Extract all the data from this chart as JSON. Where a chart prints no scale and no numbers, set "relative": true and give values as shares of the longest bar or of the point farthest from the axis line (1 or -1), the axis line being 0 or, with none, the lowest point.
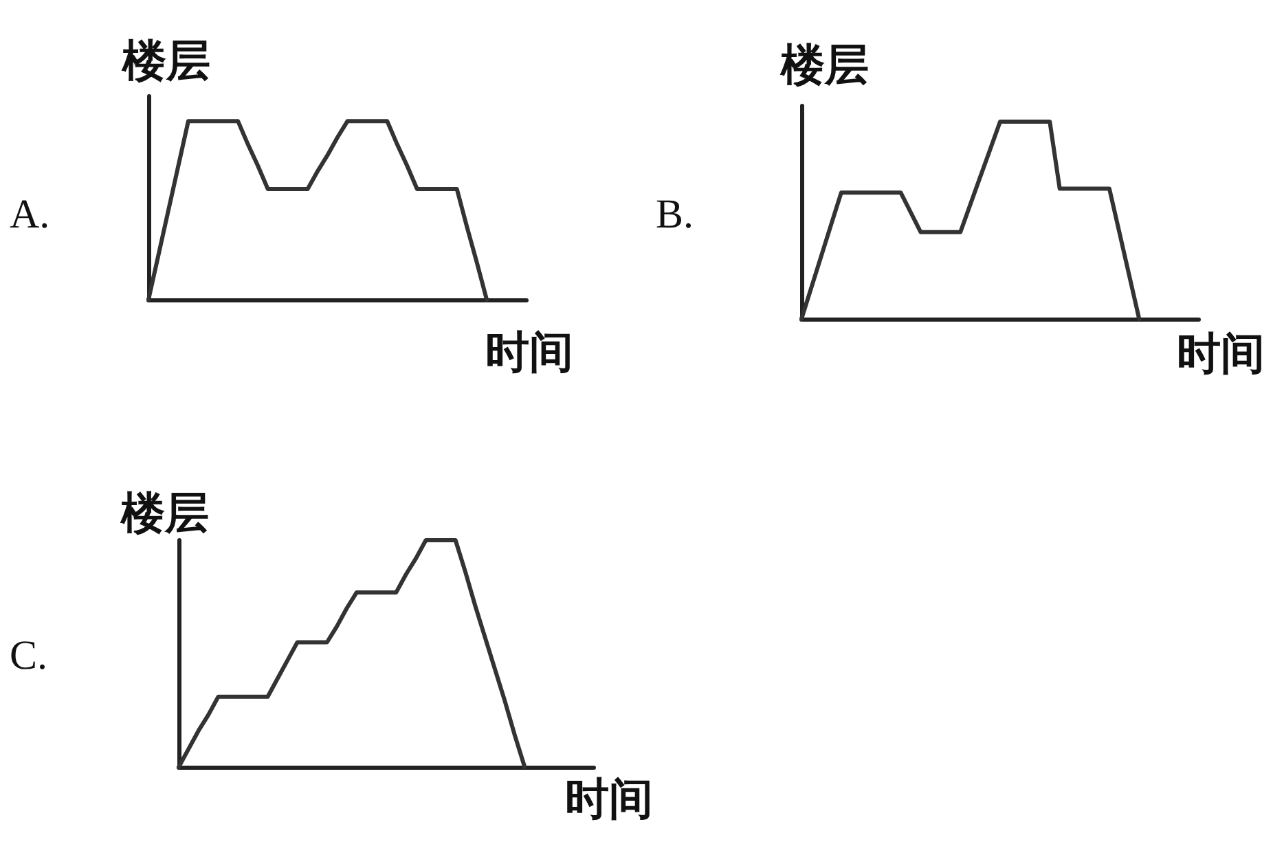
{
  "chart_data": [
    {
      "type": "line",
      "title": "A.",
      "xlabel": "时间",
      "ylabel": "楼层",
      "relative": true,
      "color": "#333333",
      "categories": [
        null,
        null,
        null,
        null,
        null,
        null,
        null,
        null,
        null,
        null,
        null,
        null,
        null,
        null,
        null,
        null,
        null,
        null,
        null,
        null,
        null,
        null,
        null,
        null,
        null,
        null,
        null,
        null,
        null,
        null,
        null,
        null,
        null,
        null,
        null,
        null,
        null,
        null,
        null
      ],
      "values": [
        0,
        0.25,
        0.5,
        0.75,
        1,
        1,
        1,
        1,
        1,
        1,
        0.87,
        0.75,
        0.62,
        0.62,
        0.62,
        0.62,
        0.62,
        0.72,
        0.81,
        0.91,
        1,
        1,
        1,
        1,
        1,
        0.87,
        0.75,
        0.62,
        0.62,
        0.62,
        0.62,
        0.62,
        0.41,
        0.21,
        0,
        null,
        null,
        null,
        null
      ]
    },
    {
      "type": "line",
      "title": "B.",
      "xlabel": "时间",
      "ylabel": "楼层",
      "relative": true,
      "color": "#333333",
      "categories": [
        null,
        null,
        null,
        null,
        null,
        null,
        null,
        null,
        null,
        null,
        null,
        null,
        null,
        null,
        null,
        null,
        null,
        null,
        null,
        null,
        null,
        null,
        null,
        null,
        null,
        null,
        null,
        null,
        null,
        null,
        null,
        null,
        null,
        null,
        null,
        null,
        null,
        null,
        null,
        null,
        null
      ],
      "values": [
        0,
        0.16,
        0.32,
        0.48,
        0.64,
        0.64,
        0.64,
        0.64,
        0.64,
        0.64,
        0.64,
        0.54,
        0.44,
        0.44,
        0.44,
        0.44,
        0.44,
        0.58,
        0.72,
        0.86,
        1,
        1,
        1,
        1,
        1,
        1,
        0.66,
        0.66,
        0.66,
        0.66,
        0.66,
        0.66,
        0.44,
        0.22,
        0,
        null,
        null,
        null,
        null,
        null,
        null
      ]
    },
    {
      "type": "line",
      "title": "C.",
      "xlabel": "时间",
      "ylabel": "楼层",
      "relative": true,
      "color": "#333333",
      "categories": [
        null,
        null,
        null,
        null,
        null,
        null,
        null,
        null,
        null,
        null,
        null,
        null,
        null,
        null,
        null,
        null,
        null,
        null,
        null,
        null,
        null,
        null,
        null,
        null,
        null,
        null,
        null,
        null,
        null,
        null,
        null,
        null,
        null,
        null,
        null,
        null,
        null,
        null,
        null,
        null,
        null,
        null,
        null
      ],
      "values": [
        0,
        0.08,
        0.16,
        0.23,
        0.31,
        0.31,
        0.31,
        0.31,
        0.31,
        0.31,
        0.39,
        0.47,
        0.55,
        0.55,
        0.55,
        0.55,
        0.62,
        0.7,
        0.77,
        0.77,
        0.77,
        0.77,
        0.77,
        0.85,
        0.92,
        1,
        1,
        1,
        1,
        0.86,
        0.71,
        0.57,
        0.43,
        0.29,
        0.14,
        0,
        null,
        null,
        null,
        null,
        null,
        null,
        null
      ]
    }
  ]
}
